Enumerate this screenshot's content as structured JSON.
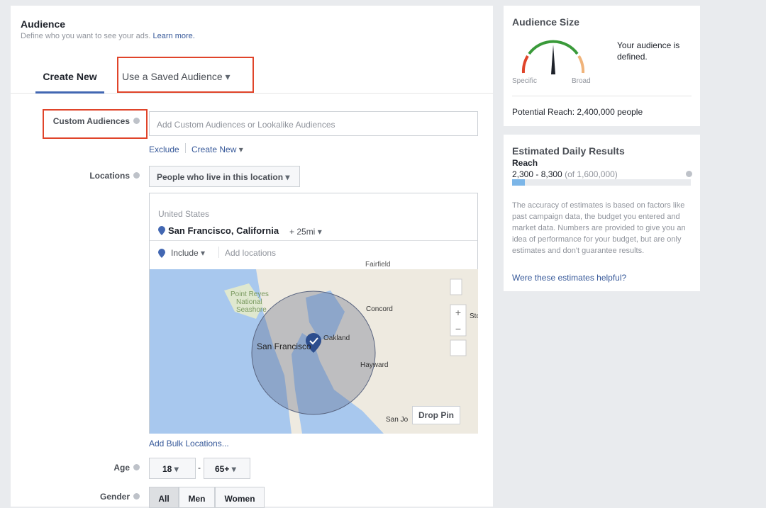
{
  "audience": {
    "title": "Audience",
    "subtitle": "Define who you want to see your ads.",
    "learn_more": "Learn more.",
    "tabs": [
      "Create New",
      "Use a Saved Audience"
    ],
    "custom_audiences": {
      "label": "Custom Audiences",
      "placeholder": "Add Custom Audiences or Lookalike Audiences",
      "exclude": "Exclude",
      "create_new": "Create New"
    },
    "locations": {
      "label": "Locations",
      "dropdown": "People who live in this location",
      "country": "United States",
      "city": "San Francisco, California",
      "radius": "+ 25mi",
      "include": "Include",
      "add_placeholder": "Add locations",
      "map_labels": [
        "Fairfield",
        "Point Reyes",
        "National",
        "Seashore",
        "Concord",
        "San Francisco",
        "Oakland",
        "Hayward",
        "San Jo",
        "Sto"
      ],
      "drop_pin": "Drop Pin",
      "bulk": "Add Bulk Locations..."
    },
    "age": {
      "label": "Age",
      "min": "18",
      "max": "65+"
    },
    "gender": {
      "label": "Gender",
      "options": [
        "All",
        "Men",
        "Women"
      ]
    }
  },
  "audience_size": {
    "title": "Audience Size",
    "status": "Your audience is defined.",
    "specific": "Specific",
    "broad": "Broad",
    "potential_reach": "Potential Reach: 2,400,000 people"
  },
  "estimated": {
    "title": "Estimated Daily Results",
    "reach_label": "Reach",
    "reach_range": "2,300 - 8,300",
    "reach_total": "(of 1,600,000)",
    "note": "The accuracy of estimates is based on factors like past campaign data, the budget you entered and market data. Numbers are provided to give you an idea of performance for your budget, but are only estimates and don't guarantee results.",
    "feedback": "Were these estimates helpful?"
  }
}
